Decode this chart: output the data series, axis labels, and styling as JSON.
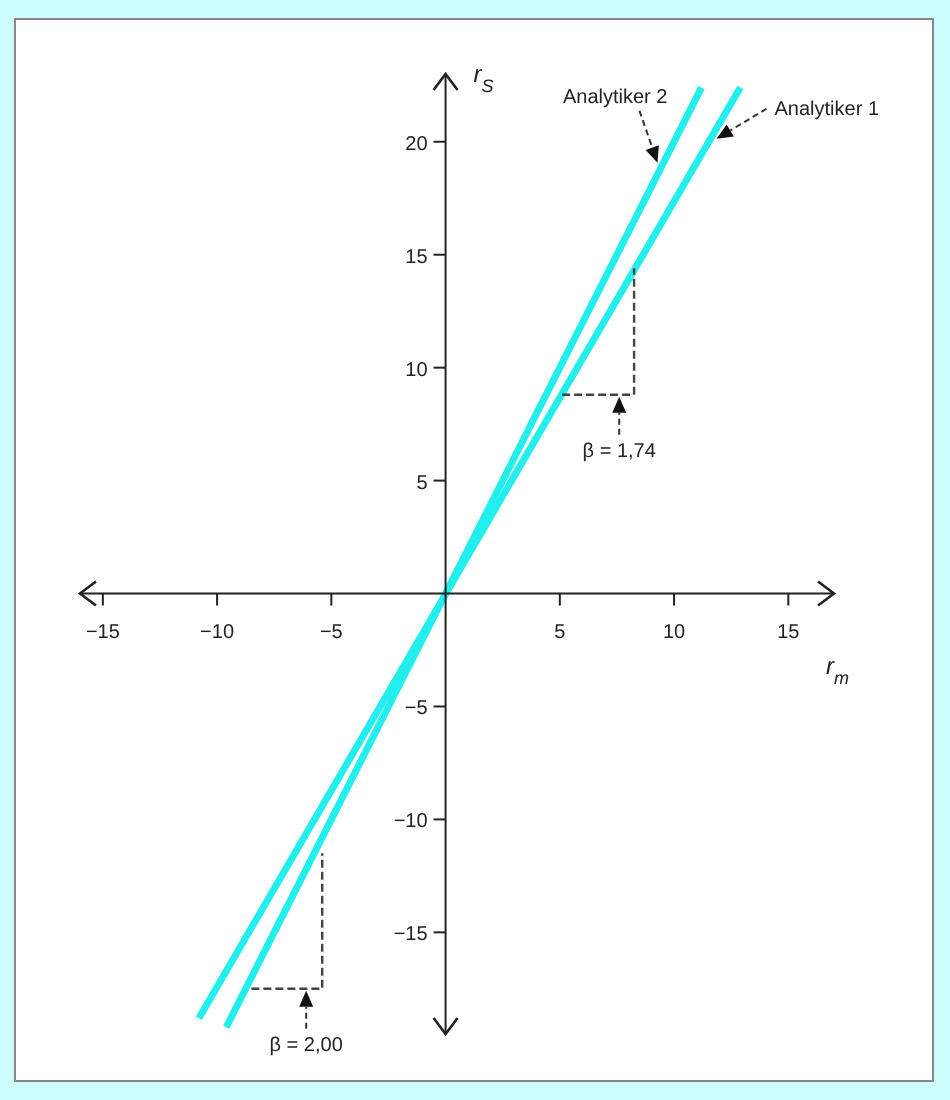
{
  "chart_data": {
    "type": "line",
    "xlabel": "r$_{m}$",
    "ylabel": "r$_{S}$",
    "xlim": [
      -16,
      17
    ],
    "ylim": [
      -19.5,
      23
    ],
    "xticks": [
      -15,
      -10,
      -5,
      5,
      10,
      15
    ],
    "yticks": [
      -15,
      -10,
      -5,
      5,
      10,
      15,
      20
    ],
    "marker": "none",
    "line_style": "solid",
    "annotations": [
      {
        "text": "β = 1,74",
        "x": 7.6,
        "y": 8.8
      },
      {
        "text": "β = 2,00",
        "x": -6.1,
        "y": -17.5
      }
    ],
    "series": [
      {
        "name": "Analytiker 2",
        "color": "#22eeee",
        "x": [
          -9.6,
          11.2
        ],
        "values": [
          -19.2,
          22.4
        ]
      },
      {
        "name": "Analytiker 1",
        "color": "#22eeee",
        "x": [
          -10.8,
          12.9
        ],
        "values": [
          -18.8,
          22.4
        ]
      },
      {
        "type": "line",
        "line_style": "dashed",
        "color": "#444444",
        "x": [
          5.1,
          8.25,
          8.25
        ],
        "values": [
          8.8,
          8.8,
          14.4
        ]
      },
      {
        "type": "line",
        "line_style": "dashed",
        "color": "#444444",
        "x": [
          -8.5,
          -5.4,
          -5.4
        ],
        "values": [
          -17.5,
          -17.5,
          -11.5
        ]
      }
    ]
  }
}
